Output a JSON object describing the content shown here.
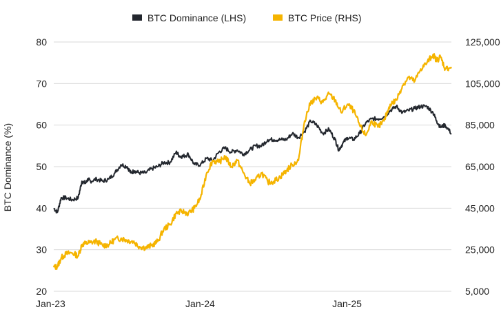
{
  "chart_data": {
    "type": "line",
    "ylabel": "BTC Dominance (%)",
    "xlabel": "",
    "x_ticks": [
      "Jan-23",
      "Jan-24",
      "Jan-25"
    ],
    "x_tick_months": [
      0,
      12,
      24
    ],
    "x_range_months": [
      0,
      32.5
    ],
    "y_left": {
      "min": 20,
      "max": 80,
      "ticks": [
        "20",
        "30",
        "40",
        "50",
        "60",
        "70",
        "80"
      ]
    },
    "y_right": {
      "min": 5000,
      "max": 125000,
      "ticks": [
        "5,000",
        "25,000",
        "45,000",
        "65,000",
        "85,000",
        "105,000",
        "125,000"
      ]
    },
    "grid": "horizontal",
    "legend": "top-center",
    "series": [
      {
        "name": "BTC Dominance (LHS)",
        "axis": "left",
        "color": "#23272e",
        "x_months": [
          0,
          0.3,
          0.6,
          1,
          1.5,
          2,
          2.3,
          2.6,
          2.8,
          3,
          3.5,
          4,
          4.5,
          5,
          5.5,
          6,
          6.3,
          6.6,
          7,
          7.5,
          8,
          8.5,
          9,
          9.5,
          10,
          10.3,
          10.6,
          11,
          11.5,
          12,
          12.5,
          13,
          13.5,
          14,
          14.5,
          15,
          15.5,
          16,
          16.5,
          17,
          17.5,
          18,
          18.5,
          19,
          19.5,
          20,
          20.5,
          21,
          21.5,
          22,
          22.5,
          23,
          23.3,
          23.6,
          24,
          24.5,
          25,
          25.5,
          26,
          26.5,
          27,
          27.5,
          28,
          28.5,
          29,
          29.5,
          30,
          30.5,
          31,
          31.3,
          31.6,
          32,
          32.5
        ],
        "values": [
          40,
          39,
          42.5,
          42.5,
          42,
          42.5,
          46.5,
          46,
          47,
          46.5,
          47,
          46.5,
          47,
          48.5,
          50.5,
          50,
          48.5,
          49,
          48.5,
          48.5,
          49.5,
          50,
          51,
          51,
          53.5,
          52.5,
          52.5,
          53,
          50.5,
          50.5,
          52,
          51.5,
          53.5,
          54.5,
          53.5,
          54,
          53,
          54,
          55,
          55,
          56.5,
          56.5,
          56.5,
          56.5,
          58,
          57,
          58.5,
          61,
          60,
          58,
          59,
          56.5,
          54,
          55.5,
          57,
          56.5,
          58,
          60.5,
          61.5,
          61.5,
          62,
          63.5,
          64.5,
          63,
          63.5,
          64,
          64.5,
          64.5,
          63,
          61,
          59.5,
          60,
          58
        ]
      },
      {
        "name": "BTC Price (RHS)",
        "axis": "right",
        "color": "#f5b400",
        "x_months": [
          0,
          0.3,
          0.6,
          1,
          1.5,
          2,
          2.3,
          2.6,
          3,
          3.5,
          4,
          4.5,
          5,
          5.5,
          6,
          6.5,
          7,
          7.5,
          8,
          8.5,
          9,
          9.5,
          10,
          10.5,
          11,
          11.5,
          12,
          12.5,
          13,
          13.5,
          14,
          14.5,
          15,
          15.5,
          16,
          16.5,
          17,
          17.5,
          18,
          18.5,
          19,
          19.5,
          20,
          20.5,
          21,
          21.5,
          22,
          22.5,
          23,
          23.5,
          24,
          24.5,
          25,
          25.5,
          26,
          26.5,
          27,
          27.5,
          28,
          28.5,
          29,
          29.5,
          30,
          30.5,
          31,
          31.3,
          31.6,
          32,
          32.5
        ],
        "values": [
          16500,
          17000,
          21000,
          23000,
          23500,
          22000,
          27500,
          28000,
          28500,
          29000,
          27000,
          27500,
          30000,
          30500,
          29500,
          29000,
          26500,
          26000,
          27000,
          29000,
          35000,
          37000,
          42500,
          43500,
          42500,
          45000,
          50000,
          62000,
          68000,
          67000,
          70000,
          65000,
          68000,
          62000,
          57000,
          58500,
          62000,
          57500,
          58000,
          60000,
          63000,
          66000,
          68000,
          87000,
          96000,
          98000,
          96000,
          100000,
          97000,
          91000,
          95000,
          92000,
          85000,
          80000,
          87000,
          84000,
          87000,
          95000,
          97000,
          104000,
          108000,
          106000,
          112000,
          115000,
          119000,
          116000,
          118000,
          112000,
          113000
        ]
      }
    ]
  }
}
